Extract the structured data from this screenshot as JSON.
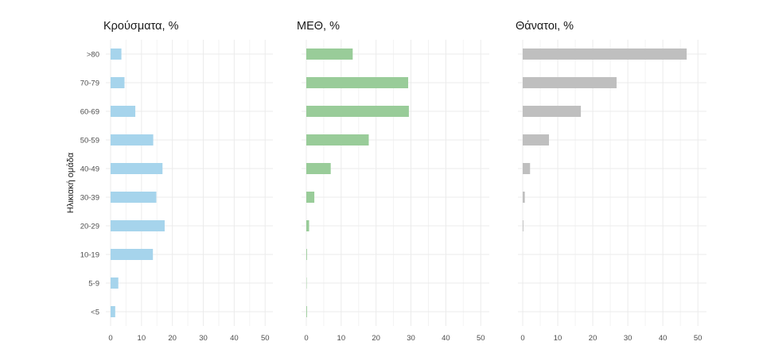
{
  "chart_data": {
    "type": "bar",
    "orientation": "horizontal",
    "ylabel": "Ηλικιακή ομάδα",
    "xlabel": "",
    "categories": [
      ">80",
      "70-79",
      "60-69",
      "50-59",
      "40-49",
      "30-39",
      "20-29",
      "10-19",
      "5-9",
      "<5"
    ],
    "panels": [
      {
        "title": "Κρούσματα, %",
        "color": "#a6d4ec",
        "values": [
          3.5,
          4.5,
          8.0,
          13.8,
          16.8,
          14.8,
          17.5,
          13.7,
          2.5,
          1.5
        ],
        "xlim": [
          0,
          52
        ],
        "xticks": [
          "0",
          "10",
          "20",
          "30",
          "40",
          "50"
        ]
      },
      {
        "title": "ΜΕΘ, %",
        "color": "#99cc99",
        "values": [
          13.3,
          29.2,
          29.4,
          17.9,
          7.0,
          2.3,
          0.8,
          0.2,
          0.1,
          0.2
        ],
        "xlim": [
          0,
          52
        ],
        "xticks": [
          "0",
          "10",
          "20",
          "30",
          "40",
          "50"
        ]
      },
      {
        "title": "Θάνατοι, %",
        "color": "#bfbfbf",
        "values": [
          46.8,
          26.8,
          16.6,
          7.5,
          2.1,
          0.6,
          0.2,
          0.0,
          0.0,
          0.0
        ],
        "xlim": [
          0,
          52
        ],
        "xticks": [
          "0",
          "10",
          "20",
          "30",
          "40",
          "50"
        ]
      }
    ],
    "grid": true,
    "legend": "none"
  }
}
